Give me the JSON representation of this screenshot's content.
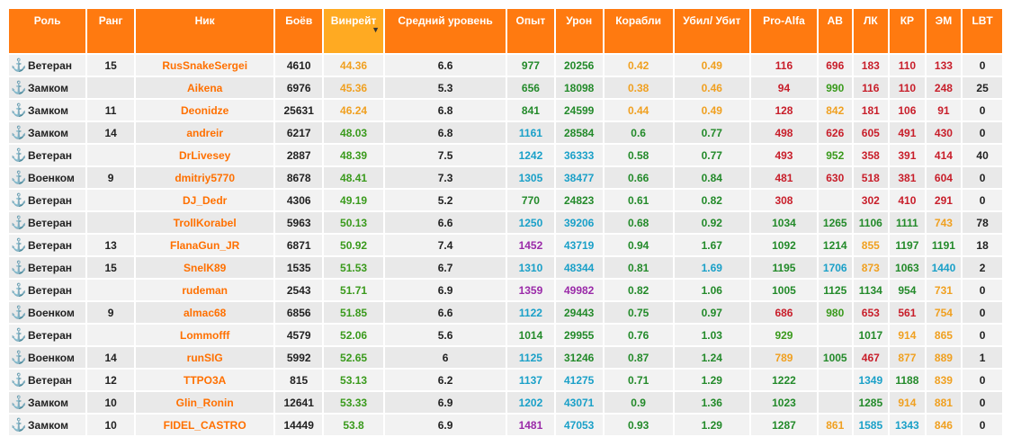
{
  "colors": {
    "header": "#ff7a10",
    "nick": "#ff7000",
    "red": "#c81e2a",
    "yellow": "#f0a020",
    "green": "#3a9a1c",
    "cyan": "#1aa0c8",
    "purple": "#9a2aa8"
  },
  "columns": [
    {
      "key": "role",
      "label": "Роль"
    },
    {
      "key": "rank",
      "label": "Ранг"
    },
    {
      "key": "nick",
      "label": "Ник"
    },
    {
      "key": "battles",
      "label": "Боёв"
    },
    {
      "key": "winrate",
      "label": "Винрейт"
    },
    {
      "key": "avg_level",
      "label": "Средний уровень"
    },
    {
      "key": "exp",
      "label": "Опыт"
    },
    {
      "key": "damage",
      "label": "Урон"
    },
    {
      "key": "ships",
      "label": "Корабли"
    },
    {
      "key": "kd",
      "label": "Убил/ Убит"
    },
    {
      "key": "proalfa",
      "label": "Pro-Alfa"
    },
    {
      "key": "av",
      "label": "АВ"
    },
    {
      "key": "lk",
      "label": "ЛК"
    },
    {
      "key": "kr",
      "label": "КР"
    },
    {
      "key": "em",
      "label": "ЭМ"
    },
    {
      "key": "lbt",
      "label": "LBT"
    }
  ],
  "sorted_column": "winrate",
  "rows": [
    {
      "role": "Ветеран",
      "icon": "anchor-icon",
      "rank": "15",
      "nick": "RusSnakeSergei",
      "battles": "4610",
      "winrate": "44.36",
      "avg_level": "6.6",
      "exp": "977",
      "damage": "20256",
      "ships": "0.42",
      "kd": "0.49",
      "proalfa": "116",
      "av": "696",
      "lk": "183",
      "kr": "110",
      "em": "133",
      "lbt": "0",
      "c": {
        "winrate": "c-yel",
        "exp": "c-dgr",
        "damage": "c-dgr",
        "ships": "c-yel",
        "kd": "c-yel",
        "proalfa": "c-red",
        "av": "c-red",
        "lk": "c-red",
        "kr": "c-red",
        "em": "c-red"
      }
    },
    {
      "role": "Замком",
      "icon": "deputy-anchor-icon",
      "rank": "",
      "nick": "Aikena",
      "battles": "6976",
      "winrate": "45.36",
      "avg_level": "5.3",
      "exp": "656",
      "damage": "18098",
      "ships": "0.38",
      "kd": "0.46",
      "proalfa": "94",
      "av": "990",
      "lk": "116",
      "kr": "110",
      "em": "248",
      "lbt": "25",
      "c": {
        "winrate": "c-yel",
        "exp": "c-dgr",
        "damage": "c-dgr",
        "ships": "c-yel",
        "kd": "c-yel",
        "proalfa": "c-red",
        "av": "c-grn",
        "lk": "c-red",
        "kr": "c-red",
        "em": "c-red"
      }
    },
    {
      "role": "Замком",
      "icon": "deputy-anchor-icon",
      "rank": "11",
      "nick": "Deonidze",
      "battles": "25631",
      "winrate": "46.24",
      "avg_level": "6.8",
      "exp": "841",
      "damage": "24599",
      "ships": "0.44",
      "kd": "0.49",
      "proalfa": "128",
      "av": "842",
      "lk": "181",
      "kr": "106",
      "em": "91",
      "lbt": "0",
      "c": {
        "winrate": "c-yel",
        "exp": "c-dgr",
        "damage": "c-dgr",
        "ships": "c-yel",
        "kd": "c-yel",
        "proalfa": "c-red",
        "av": "c-yel",
        "lk": "c-red",
        "kr": "c-red",
        "em": "c-red"
      }
    },
    {
      "role": "Замком",
      "icon": "deputy-anchor-icon",
      "rank": "14",
      "nick": "andreir",
      "battles": "6217",
      "winrate": "48.03",
      "avg_level": "6.8",
      "exp": "1161",
      "damage": "28584",
      "ships": "0.6",
      "kd": "0.77",
      "proalfa": "498",
      "av": "626",
      "lk": "605",
      "kr": "491",
      "em": "430",
      "lbt": "0",
      "c": {
        "winrate": "c-grn",
        "exp": "c-cyn",
        "damage": "c-dgr",
        "ships": "c-dgr",
        "kd": "c-dgr",
        "proalfa": "c-red",
        "av": "c-red",
        "lk": "c-red",
        "kr": "c-red",
        "em": "c-red"
      }
    },
    {
      "role": "Ветеран",
      "icon": "anchor-icon",
      "rank": "",
      "nick": "DrLivesey",
      "battles": "2887",
      "winrate": "48.39",
      "avg_level": "7.5",
      "exp": "1242",
      "damage": "36333",
      "ships": "0.58",
      "kd": "0.77",
      "proalfa": "493",
      "av": "952",
      "lk": "358",
      "kr": "391",
      "em": "414",
      "lbt": "40",
      "c": {
        "winrate": "c-grn",
        "exp": "c-cyn",
        "damage": "c-cyn",
        "ships": "c-dgr",
        "kd": "c-dgr",
        "proalfa": "c-red",
        "av": "c-grn",
        "lk": "c-red",
        "kr": "c-red",
        "em": "c-red"
      }
    },
    {
      "role": "Военком",
      "icon": "commissar-icon",
      "rank": "9",
      "nick": "dmitriy5770",
      "battles": "8678",
      "winrate": "48.41",
      "avg_level": "7.3",
      "exp": "1305",
      "damage": "38477",
      "ships": "0.66",
      "kd": "0.84",
      "proalfa": "481",
      "av": "630",
      "lk": "518",
      "kr": "381",
      "em": "604",
      "lbt": "0",
      "c": {
        "winrate": "c-grn",
        "exp": "c-cyn",
        "damage": "c-cyn",
        "ships": "c-dgr",
        "kd": "c-dgr",
        "proalfa": "c-red",
        "av": "c-red",
        "lk": "c-red",
        "kr": "c-red",
        "em": "c-red"
      }
    },
    {
      "role": "Ветеран",
      "icon": "anchor-icon",
      "rank": "",
      "nick": "DJ_Dedr",
      "battles": "4306",
      "winrate": "49.19",
      "avg_level": "5.2",
      "exp": "770",
      "damage": "24823",
      "ships": "0.61",
      "kd": "0.82",
      "proalfa": "308",
      "av": "",
      "lk": "302",
      "kr": "410",
      "em": "291",
      "lbt": "0",
      "c": {
        "winrate": "c-grn",
        "exp": "c-dgr",
        "damage": "c-dgr",
        "ships": "c-dgr",
        "kd": "c-dgr",
        "proalfa": "c-red",
        "av": "c-red",
        "lk": "c-red",
        "kr": "c-red",
        "em": "c-red"
      }
    },
    {
      "role": "Ветеран",
      "icon": "anchor-icon",
      "rank": "",
      "nick": "TrollKorabel",
      "battles": "5963",
      "winrate": "50.13",
      "avg_level": "6.6",
      "exp": "1250",
      "damage": "39206",
      "ships": "0.68",
      "kd": "0.92",
      "proalfa": "1034",
      "av": "1265",
      "lk": "1106",
      "kr": "1111",
      "em": "743",
      "lbt": "78",
      "c": {
        "winrate": "c-grn",
        "exp": "c-cyn",
        "damage": "c-cyn",
        "ships": "c-dgr",
        "kd": "c-dgr",
        "proalfa": "c-dgr",
        "av": "c-dgr",
        "lk": "c-dgr",
        "kr": "c-dgr",
        "em": "c-yel"
      }
    },
    {
      "role": "Ветеран",
      "icon": "anchor-icon",
      "rank": "13",
      "nick": "FlanaGun_JR",
      "battles": "6871",
      "winrate": "50.92",
      "avg_level": "7.4",
      "exp": "1452",
      "damage": "43719",
      "ships": "0.94",
      "kd": "1.67",
      "proalfa": "1092",
      "av": "1214",
      "lk": "855",
      "kr": "1197",
      "em": "1191",
      "lbt": "18",
      "c": {
        "winrate": "c-grn",
        "exp": "c-pur",
        "damage": "c-cyn",
        "ships": "c-dgr",
        "kd": "c-dgr",
        "proalfa": "c-dgr",
        "av": "c-dgr",
        "lk": "c-yel",
        "kr": "c-dgr",
        "em": "c-dgr"
      }
    },
    {
      "role": "Ветеран",
      "icon": "anchor-icon",
      "rank": "15",
      "nick": "SnelK89",
      "battles": "1535",
      "winrate": "51.53",
      "avg_level": "6.7",
      "exp": "1310",
      "damage": "48344",
      "ships": "0.81",
      "kd": "1.69",
      "proalfa": "1195",
      "av": "1706",
      "lk": "873",
      "kr": "1063",
      "em": "1440",
      "lbt": "2",
      "c": {
        "winrate": "c-grn",
        "exp": "c-cyn",
        "damage": "c-cyn",
        "ships": "c-dgr",
        "kd": "c-cyn",
        "proalfa": "c-dgr",
        "av": "c-cyn",
        "lk": "c-yel",
        "kr": "c-dgr",
        "em": "c-cyn"
      }
    },
    {
      "role": "Ветеран",
      "icon": "anchor-icon",
      "rank": "",
      "nick": "rudeman",
      "battles": "2543",
      "winrate": "51.71",
      "avg_level": "6.9",
      "exp": "1359",
      "damage": "49982",
      "ships": "0.82",
      "kd": "1.06",
      "proalfa": "1005",
      "av": "1125",
      "lk": "1134",
      "kr": "954",
      "em": "731",
      "lbt": "0",
      "c": {
        "winrate": "c-grn",
        "exp": "c-pur",
        "damage": "c-pur",
        "ships": "c-dgr",
        "kd": "c-dgr",
        "proalfa": "c-dgr",
        "av": "c-dgr",
        "lk": "c-dgr",
        "kr": "c-dgr",
        "em": "c-yel"
      }
    },
    {
      "role": "Военком",
      "icon": "commissar-icon",
      "rank": "9",
      "nick": "almac68",
      "battles": "6856",
      "winrate": "51.85",
      "avg_level": "6.6",
      "exp": "1122",
      "damage": "29443",
      "ships": "0.75",
      "kd": "0.97",
      "proalfa": "686",
      "av": "980",
      "lk": "653",
      "kr": "561",
      "em": "754",
      "lbt": "0",
      "c": {
        "winrate": "c-grn",
        "exp": "c-cyn",
        "damage": "c-dgr",
        "ships": "c-dgr",
        "kd": "c-dgr",
        "proalfa": "c-red",
        "av": "c-grn",
        "lk": "c-red",
        "kr": "c-red",
        "em": "c-yel"
      }
    },
    {
      "role": "Ветеран",
      "icon": "anchor-icon",
      "rank": "",
      "nick": "Lommofff",
      "battles": "4579",
      "winrate": "52.06",
      "avg_level": "5.6",
      "exp": "1014",
      "damage": "29955",
      "ships": "0.76",
      "kd": "1.03",
      "proalfa": "929",
      "av": "",
      "lk": "1017",
      "kr": "914",
      "em": "865",
      "lbt": "0",
      "c": {
        "winrate": "c-grn",
        "exp": "c-dgr",
        "damage": "c-dgr",
        "ships": "c-dgr",
        "kd": "c-dgr",
        "proalfa": "c-grn",
        "av": "c-grn",
        "lk": "c-dgr",
        "kr": "c-yel",
        "em": "c-yel"
      }
    },
    {
      "role": "Военком",
      "icon": "commissar-icon",
      "rank": "14",
      "nick": "runSIG",
      "battles": "5992",
      "winrate": "52.65",
      "avg_level": "6",
      "exp": "1125",
      "damage": "31246",
      "ships": "0.87",
      "kd": "1.24",
      "proalfa": "789",
      "av": "1005",
      "lk": "467",
      "kr": "877",
      "em": "889",
      "lbt": "1",
      "c": {
        "winrate": "c-grn",
        "exp": "c-cyn",
        "damage": "c-dgr",
        "ships": "c-dgr",
        "kd": "c-dgr",
        "proalfa": "c-yel",
        "av": "c-dgr",
        "lk": "c-red",
        "kr": "c-yel",
        "em": "c-yel"
      }
    },
    {
      "role": "Ветеран",
      "icon": "anchor-icon",
      "rank": "12",
      "nick": "TTPO3A",
      "battles": "815",
      "winrate": "53.13",
      "avg_level": "6.2",
      "exp": "1137",
      "damage": "41275",
      "ships": "0.71",
      "kd": "1.29",
      "proalfa": "1222",
      "av": "",
      "lk": "1349",
      "kr": "1188",
      "em": "839",
      "lbt": "0",
      "c": {
        "winrate": "c-grn",
        "exp": "c-cyn",
        "damage": "c-cyn",
        "ships": "c-dgr",
        "kd": "c-dgr",
        "proalfa": "c-dgr",
        "av": "c-dgr",
        "lk": "c-cyn",
        "kr": "c-dgr",
        "em": "c-yel"
      }
    },
    {
      "role": "Замком",
      "icon": "deputy-anchor-icon",
      "rank": "10",
      "nick": "Glin_Ronin",
      "battles": "12641",
      "winrate": "53.33",
      "avg_level": "6.9",
      "exp": "1202",
      "damage": "43071",
      "ships": "0.9",
      "kd": "1.36",
      "proalfa": "1023",
      "av": "",
      "lk": "1285",
      "kr": "914",
      "em": "881",
      "lbt": "0",
      "c": {
        "winrate": "c-grn",
        "exp": "c-cyn",
        "damage": "c-cyn",
        "ships": "c-dgr",
        "kd": "c-dgr",
        "proalfa": "c-dgr",
        "av": "c-dgr",
        "lk": "c-dgr",
        "kr": "c-yel",
        "em": "c-yel"
      }
    },
    {
      "role": "Замком",
      "icon": "deputy-anchor-icon",
      "rank": "10",
      "nick": "FIDEL_CASTRO",
      "battles": "14449",
      "winrate": "53.8",
      "avg_level": "6.9",
      "exp": "1481",
      "damage": "47053",
      "ships": "0.93",
      "kd": "1.29",
      "proalfa": "1287",
      "av": "861",
      "lk": "1585",
      "kr": "1343",
      "em": "846",
      "lbt": "0",
      "c": {
        "winrate": "c-grn",
        "exp": "c-pur",
        "damage": "c-cyn",
        "ships": "c-dgr",
        "kd": "c-dgr",
        "proalfa": "c-dgr",
        "av": "c-yel",
        "lk": "c-cyn",
        "kr": "c-cyn",
        "em": "c-yel"
      }
    }
  ]
}
